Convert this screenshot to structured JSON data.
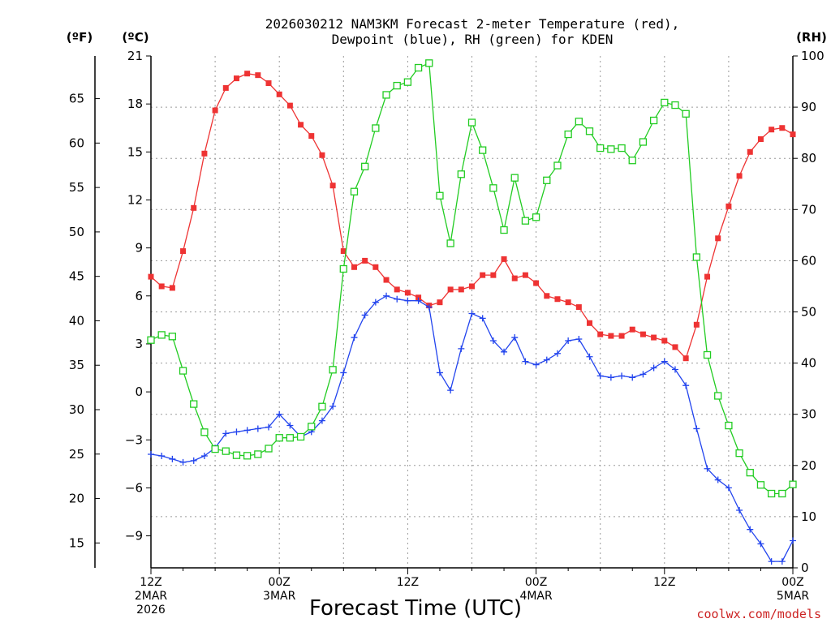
{
  "chart_data": {
    "type": "line",
    "title_line1": "2026030212 NAM3KM Forecast 2-meter Temperature (red),",
    "title_line2": "Dewpoint (blue), RH (green) for KDEN",
    "unit_f": "(ºF)",
    "unit_c": "(ºC)",
    "unit_rh": "(RH)",
    "xlabel": "Forecast Time (UTC)",
    "credit": "coolwx.com/models",
    "x_ticks": [
      {
        "hour": 0,
        "lines": [
          "12Z",
          "2MAR",
          "2026"
        ]
      },
      {
        "hour": 12,
        "lines": [
          "00Z",
          "3MAR"
        ]
      },
      {
        "hour": 24,
        "lines": [
          "12Z"
        ]
      },
      {
        "hour": 36,
        "lines": [
          "00Z",
          "4MAR"
        ]
      },
      {
        "hour": 48,
        "lines": [
          "12Z"
        ]
      },
      {
        "hour": 60,
        "lines": [
          "00Z",
          "5MAR"
        ]
      }
    ],
    "x_range": [
      0,
      60
    ],
    "ylim_c": [
      -11,
      21
    ],
    "ylim_rh": [
      0,
      100
    ],
    "yticks_c": [
      21,
      18,
      15,
      12,
      9,
      6,
      3,
      0,
      -3,
      -6,
      -9
    ],
    "yticks_f": [
      65,
      60,
      55,
      50,
      45,
      40,
      35,
      30,
      25,
      20,
      15
    ],
    "yticks_rh": [
      100,
      90,
      80,
      70,
      60,
      50,
      40,
      30,
      20,
      10,
      0
    ],
    "grid": true,
    "colors": {
      "temperature": "#ee3333",
      "dewpoint": "#2244ee",
      "rh": "#22cc22",
      "credit": "#cc2222"
    },
    "series": [
      {
        "name": "Temperature",
        "unit": "C",
        "marker": "filled-square",
        "values": [
          7.2,
          6.6,
          6.5,
          8.8,
          11.5,
          14.9,
          17.6,
          19.0,
          19.6,
          19.9,
          19.8,
          19.3,
          18.6,
          17.9,
          16.7,
          16.0,
          14.8,
          12.9,
          8.8,
          7.8,
          8.2,
          7.8,
          7.0,
          6.4,
          6.2,
          5.9,
          5.4,
          5.6,
          6.4,
          6.4,
          6.6,
          7.3,
          7.3,
          8.3,
          7.1,
          7.3,
          6.8,
          6.0,
          5.8,
          5.6,
          5.3,
          4.3,
          3.6,
          3.5,
          3.5,
          3.9,
          3.6,
          3.4,
          3.2,
          2.8,
          2.1,
          4.2,
          7.2,
          9.6,
          11.6,
          13.5,
          15.0,
          15.8,
          16.4,
          16.5,
          16.1
        ]
      },
      {
        "name": "Dewpoint",
        "unit": "C",
        "marker": "plus",
        "values": [
          -3.9,
          -4.0,
          -4.2,
          -4.4,
          -4.3,
          -4.0,
          -3.5,
          -2.6,
          -2.5,
          -2.4,
          -2.3,
          -2.2,
          -1.4,
          -2.1,
          -2.8,
          -2.5,
          -1.8,
          -0.9,
          1.2,
          3.4,
          4.8,
          5.6,
          6.0,
          5.8,
          5.7,
          5.7,
          5.3,
          1.2,
          0.1,
          2.7,
          4.9,
          4.6,
          3.2,
          2.5,
          3.4,
          1.9,
          1.7,
          2.0,
          2.4,
          3.2,
          3.3,
          2.2,
          1.0,
          0.9,
          1.0,
          0.9,
          1.1,
          1.5,
          1.9,
          1.4,
          0.4,
          -2.3,
          -4.8,
          -5.5,
          -6.0,
          -7.4,
          -8.6,
          -9.5,
          -10.6,
          -10.6,
          -9.3
        ]
      },
      {
        "name": "RH",
        "unit": "%",
        "marker": "open-square",
        "values": [
          44.5,
          45.5,
          45.2,
          38.5,
          32,
          26.5,
          23.2,
          22.8,
          22.0,
          21.9,
          22.2,
          23.3,
          25.4,
          25.4,
          25.6,
          27.6,
          31.5,
          38.7,
          58.4,
          73.5,
          78.4,
          85.9,
          92.4,
          94.2,
          94.9,
          97.7,
          98.6,
          72.7,
          63.4,
          76.9,
          87.0,
          81.6,
          74.2,
          66.0,
          76.2,
          67.8,
          68.5,
          75.7,
          78.6,
          84.7,
          87.2,
          85.3,
          82.0,
          81.8,
          82.0,
          79.6,
          83.2,
          87.4,
          90.9,
          90.4,
          88.7,
          60.7,
          41.6,
          33.6,
          27.8,
          22.4,
          18.6,
          16.2,
          14.5,
          14.5,
          16.3
        ]
      }
    ]
  }
}
